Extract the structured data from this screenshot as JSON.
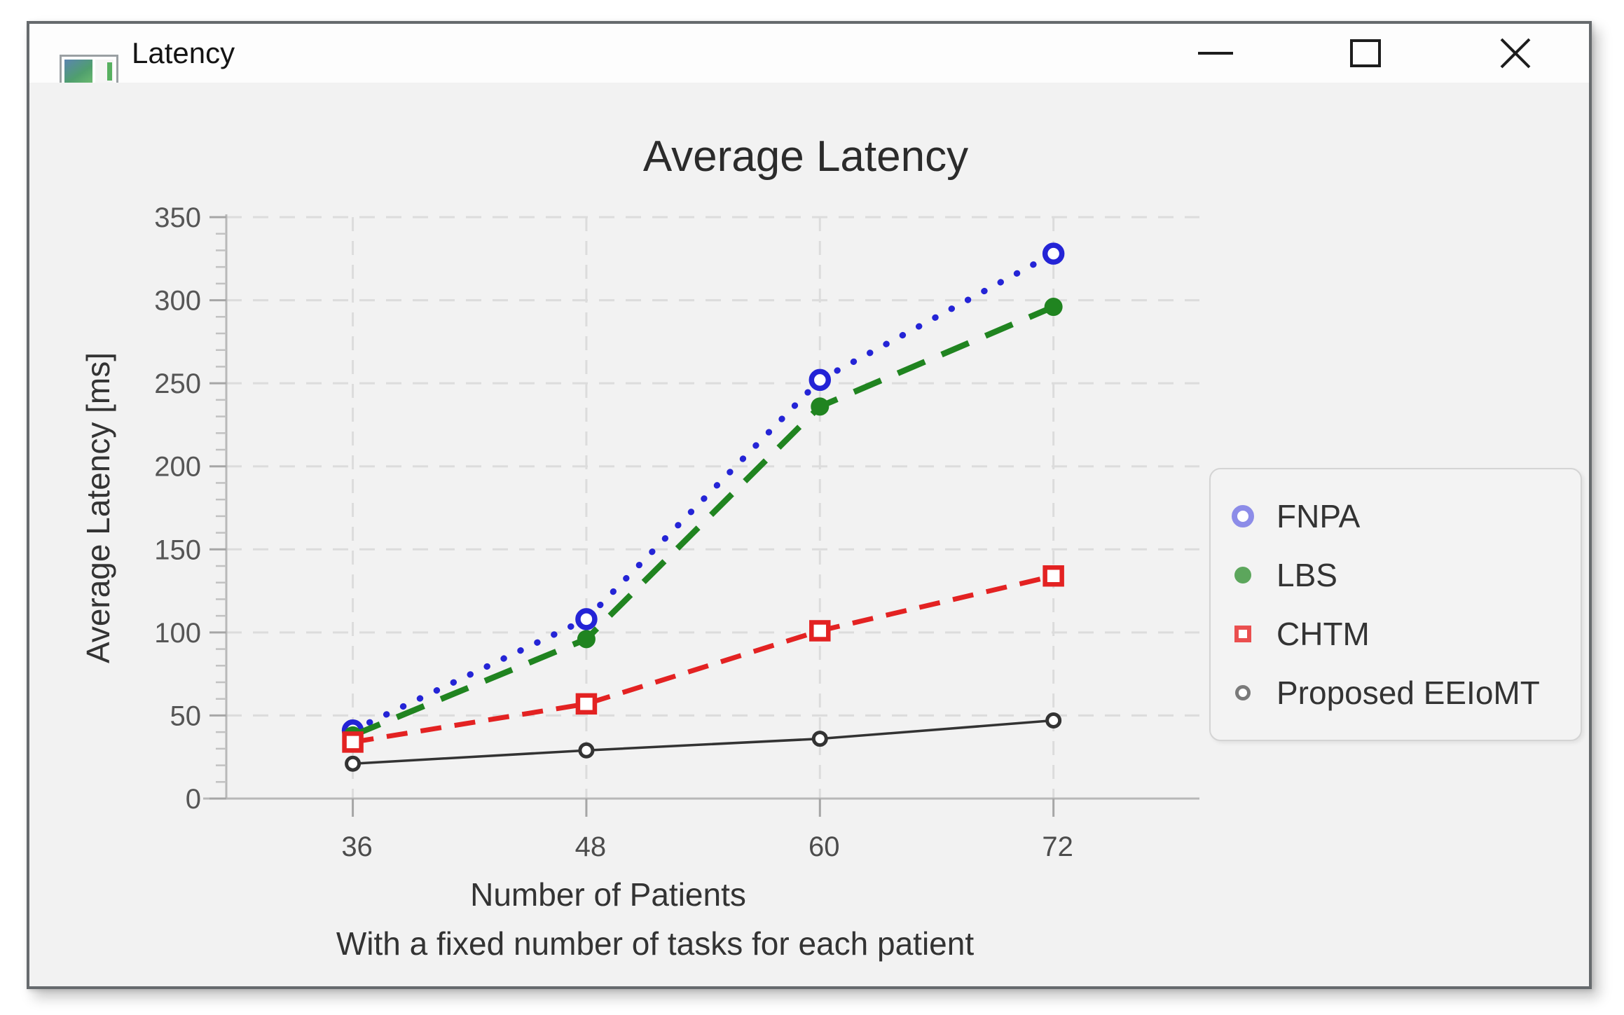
{
  "window": {
    "title": "Latency"
  },
  "chart_data": {
    "type": "line",
    "title": "Average Latency",
    "ylabel": "Average Latency [ms]",
    "xlabel": "Number of Patients",
    "xlabel_note": "With a fixed number of tasks for each patient",
    "x": [
      36,
      48,
      60,
      72
    ],
    "xticks": [
      36,
      48,
      60,
      72
    ],
    "yticks": [
      0,
      50,
      100,
      150,
      200,
      250,
      300,
      350
    ],
    "xlim": [
      29.5,
      79.5
    ],
    "ylim": [
      0,
      350
    ],
    "y_minor_tick_step": 10,
    "grid": true,
    "legend_position": "right",
    "series": [
      {
        "name": "FNPA",
        "values": [
          41,
          108,
          252,
          328
        ],
        "color": "#2424d6",
        "legend_color": "#8c8ce8",
        "line_style": "dotted",
        "marker": "open-circle"
      },
      {
        "name": "LBS",
        "values": [
          38,
          96,
          236,
          296
        ],
        "color": "#208420",
        "legend_color": "#5ca65c",
        "line_style": "long-dash",
        "marker": "filled-circle"
      },
      {
        "name": "CHTM",
        "values": [
          34,
          57,
          101,
          134
        ],
        "color": "#e32222",
        "legend_color": "#ea4f4f",
        "line_style": "dashed",
        "marker": "open-square"
      },
      {
        "name": "Proposed EEIoMT",
        "values": [
          21,
          29,
          36,
          47
        ],
        "color": "#333333",
        "legend_color": "#7a7a7a",
        "line_style": "solid",
        "marker": "open-circle-small"
      }
    ],
    "colors": {
      "window_background": "#f2f2f2",
      "gridline": "#dcdcdc",
      "axis_spine": "#b8b8b8",
      "tick": "#a6a6a6",
      "tick_label": "#565656",
      "text": "#333333"
    }
  }
}
